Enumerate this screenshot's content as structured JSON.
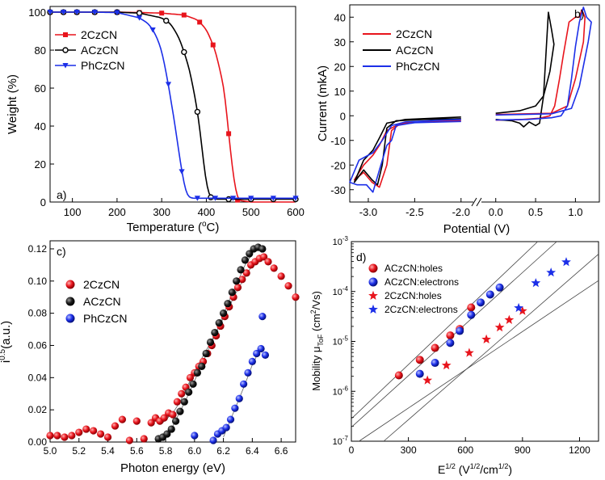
{
  "colors": {
    "red": "#e8141c",
    "black": "#000000",
    "blue": "#1c2fe8",
    "fit": "#444444"
  },
  "chart_data": [
    {
      "id": "a",
      "type": "line",
      "panel_label": "a)",
      "xlabel": "Temperature (",
      "xlabel_sup": "o",
      "xlabel_end": "C)",
      "ylabel": "Weight (%)",
      "xlim": [
        50,
        600
      ],
      "ylim": [
        0,
        103
      ],
      "xticks": [
        100,
        200,
        300,
        400,
        500,
        600
      ],
      "yticks": [
        0,
        20,
        40,
        60,
        80,
        100
      ],
      "legend_position": "top-left",
      "series": [
        {
          "name": "2CzCN",
          "color": "#e8141c",
          "marker": "square",
          "x": [
            50,
            80,
            110,
            150,
            200,
            250,
            300,
            350,
            380,
            400,
            420,
            440,
            450,
            460,
            470,
            500,
            550,
            600
          ],
          "y": [
            100,
            100,
            100,
            100,
            100,
            99.8,
            99.5,
            98.5,
            96,
            91,
            80,
            60,
            36,
            14,
            1,
            0,
            0,
            0
          ],
          "marker_x": [
            50,
            80,
            110,
            150,
            200,
            250,
            300,
            350,
            385,
            415,
            450,
            470
          ]
        },
        {
          "name": "ACzCN",
          "color": "#000000",
          "marker": "circle",
          "x": [
            50,
            80,
            110,
            150,
            200,
            250,
            300,
            320,
            340,
            360,
            375,
            385,
            395,
            405,
            420,
            450,
            500,
            550,
            600
          ],
          "y": [
            100,
            100,
            100,
            100,
            100,
            99.5,
            97,
            94,
            86,
            72,
            55,
            40,
            18,
            3,
            1.5,
            1.5,
            1.5,
            1.5,
            1.5
          ],
          "marker_x": [
            50,
            80,
            110,
            150,
            200,
            250,
            310,
            350,
            380,
            410,
            450,
            500,
            550,
            600
          ]
        },
        {
          "name": "PhCzCN",
          "color": "#1c2fe8",
          "marker": "triangle-down",
          "x": [
            50,
            80,
            110,
            150,
            200,
            250,
            270,
            285,
            300,
            315,
            330,
            345,
            355,
            365,
            400,
            450,
            500,
            550,
            600
          ],
          "y": [
            100,
            100,
            100,
            100,
            99.8,
            97,
            94,
            89,
            80,
            62,
            40,
            16,
            4,
            2,
            2,
            2,
            2,
            2,
            2
          ],
          "marker_x": [
            50,
            80,
            110,
            150,
            200,
            250,
            280,
            315,
            345,
            380,
            420,
            460,
            500,
            550,
            600
          ]
        }
      ]
    },
    {
      "id": "b",
      "type": "line",
      "panel_label": "b)",
      "xlabel": "Potential (V)",
      "ylabel": "Current (mkA)",
      "xlim": [
        -3.2,
        1.3
      ],
      "ylim": [
        -35,
        45
      ],
      "xticks": [
        -3.0,
        -2.5,
        -2.0,
        0.0,
        0.5,
        1.0
      ],
      "xticklabels": [
        "-3.0",
        "-2.5",
        "-2.0",
        "0.0",
        "0.5",
        "1.0"
      ],
      "yticks": [
        -30,
        -20,
        -10,
        0,
        10,
        20,
        30,
        40
      ],
      "axis_break": "between -2.0 and 0.0",
      "legend_position": "top-left",
      "series": [
        {
          "name": "2CzCN",
          "color": "#e8141c"
        },
        {
          "name": "ACzCN",
          "color": "#000000"
        },
        {
          "name": "PhCzCN",
          "color": "#1c2fe8"
        }
      ]
    },
    {
      "id": "c",
      "type": "scatter",
      "panel_label": "c)",
      "xlabel": "Photon energy (eV)",
      "ylabel": "i",
      "ylabel_sup": "0.5",
      "ylabel_end": "(a.u.)",
      "xlim": [
        5.0,
        6.7
      ],
      "ylim": [
        0,
        0.125
      ],
      "xticks": [
        5.0,
        5.2,
        5.4,
        5.6,
        5.8,
        6.0,
        6.2,
        6.4,
        6.6
      ],
      "xticklabels": [
        "5.0",
        "5.2",
        "5.4",
        "5.6",
        "5.8",
        "6.0",
        "6.2",
        "6.4",
        "6.6"
      ],
      "yticks": [
        0,
        0.02,
        0.04,
        0.06,
        0.08,
        0.1,
        0.12
      ],
      "yticklabels": [
        "0.00",
        "0.02",
        "0.04",
        "0.06",
        "0.08",
        "0.10",
        "0.12"
      ],
      "legend_position": "left",
      "series": [
        {
          "name": "2CzCN",
          "color": "#e8141c",
          "x": [
            5.0,
            5.05,
            5.1,
            5.15,
            5.2,
            5.25,
            5.3,
            5.35,
            5.4,
            5.45,
            5.5,
            5.55,
            5.6,
            5.65,
            5.7,
            5.73,
            5.76,
            5.79,
            5.82,
            5.85,
            5.88,
            5.91,
            5.94,
            5.97,
            6.0,
            6.03,
            6.06,
            6.09,
            6.12,
            6.15,
            6.18,
            6.21,
            6.24,
            6.27,
            6.3,
            6.33,
            6.36,
            6.39,
            6.42,
            6.45,
            6.48,
            6.51,
            6.55,
            6.6,
            6.65,
            6.7
          ],
          "y": [
            0.004,
            0.004,
            0.003,
            0.004,
            0.006,
            0.008,
            0.007,
            0.005,
            0.003,
            0.01,
            0.014,
            0.001,
            0.013,
            0.002,
            0.012,
            0.015,
            0.013,
            0.015,
            0.018,
            0.017,
            0.025,
            0.03,
            0.034,
            0.04,
            0.043,
            0.047,
            0.05,
            0.055,
            0.06,
            0.066,
            0.072,
            0.078,
            0.084,
            0.09,
            0.096,
            0.101,
            0.105,
            0.11,
            0.112,
            0.114,
            0.115,
            0.112,
            0.108,
            0.103,
            0.097,
            0.09
          ],
          "fit_x": [
            5.78,
            5.85,
            5.9,
            6.0,
            6.1,
            6.2,
            6.3,
            6.4,
            6.45,
            6.5
          ],
          "fit_y": [
            0.012,
            0.018,
            0.025,
            0.044,
            0.06,
            0.077,
            0.095,
            0.11,
            0.115,
            0.113
          ]
        },
        {
          "name": "ACzCN",
          "color": "#000000",
          "x": [
            5.75,
            5.78,
            5.81,
            5.84,
            5.87,
            5.9,
            5.93,
            5.96,
            5.99,
            6.02,
            6.05,
            6.08,
            6.11,
            6.14,
            6.17,
            6.2,
            6.23,
            6.26,
            6.29,
            6.32,
            6.35,
            6.38,
            6.41,
            6.44,
            6.47
          ],
          "y": [
            0.002,
            0.003,
            0.005,
            0.008,
            0.013,
            0.019,
            0.025,
            0.031,
            0.036,
            0.043,
            0.047,
            0.055,
            0.062,
            0.068,
            0.074,
            0.08,
            0.086,
            0.093,
            0.1,
            0.107,
            0.113,
            0.117,
            0.12,
            0.121,
            0.12
          ],
          "fit_x": [
            5.75,
            5.85,
            5.95,
            6.05,
            6.15,
            6.25,
            6.35,
            6.42,
            6.47
          ],
          "fit_y": [
            0.0,
            0.01,
            0.028,
            0.048,
            0.068,
            0.09,
            0.11,
            0.12,
            0.121
          ]
        },
        {
          "name": "PhCzCN",
          "color": "#1c2fe8",
          "x": [
            6.0,
            6.13,
            6.16,
            6.19,
            6.22,
            6.25,
            6.28,
            6.31,
            6.34,
            6.37,
            6.4,
            6.43,
            6.46,
            6.49
          ],
          "y": [
            0.004,
            0.001,
            0.005,
            0.007,
            0.009,
            0.014,
            0.021,
            0.027,
            0.036,
            0.043,
            0.05,
            0.055,
            0.058,
            0.054
          ],
          "extra_x": [
            6.47
          ],
          "extra_y": [
            0.078
          ],
          "fit_x": [
            6.2,
            6.25,
            6.3,
            6.35,
            6.4,
            6.45
          ],
          "fit_y": [
            0.003,
            0.014,
            0.025,
            0.036,
            0.048,
            0.057
          ]
        }
      ]
    },
    {
      "id": "d",
      "type": "scatter",
      "panel_label": "d)",
      "xlabel": "E",
      "xlabel_sup": "1/2",
      "xlabel_mid": " (V",
      "xlabel_sup2": "1/2",
      "xlabel_mid2": "/cm",
      "xlabel_sup3": "1/2",
      "xlabel_end": ")",
      "ylabel": "Mobility  μ",
      "ylabel_sub": "ToF",
      "ylabel_end": " (cm",
      "ylabel_sup": "2",
      "ylabel_end2": "/Vs)",
      "xlim": [
        0,
        1300
      ],
      "ylim_log10": [
        -7,
        -3
      ],
      "xticks": [
        0,
        300,
        600,
        900,
        1200
      ],
      "yticks_log10": [
        -7,
        -6,
        -5,
        -4,
        -3
      ],
      "legend_position": "top-left",
      "series": [
        {
          "name": "ACzCN:holes",
          "color": "#e8141c",
          "marker": "ball",
          "x": [
            250,
            360,
            440,
            520,
            570,
            630
          ],
          "log10_y": [
            -5.68,
            -5.37,
            -5.13,
            -4.88,
            -4.75,
            -4.32
          ]
        },
        {
          "name": "ACzCN:electrons",
          "color": "#1c2fe8",
          "marker": "ball",
          "x": [
            360,
            440,
            520,
            570,
            630,
            680,
            730,
            780
          ],
          "log10_y": [
            -5.65,
            -5.43,
            -5.03,
            -4.79,
            -4.47,
            -4.22,
            -4.06,
            -3.92
          ]
        },
        {
          "name": "2CzCN:holes",
          "color": "#e8141c",
          "marker": "star",
          "x": [
            400,
            500,
            620,
            710,
            780,
            830,
            900
          ],
          "log10_y": [
            -5.78,
            -5.48,
            -5.23,
            -4.96,
            -4.72,
            -4.57,
            -4.39
          ]
        },
        {
          "name": "2CzCN:electrons",
          "color": "#1c2fe8",
          "marker": "star",
          "x": [
            880,
            970,
            1050,
            1130
          ],
          "log10_y": [
            -4.33,
            -3.83,
            -3.62,
            -3.41
          ]
        }
      ],
      "fit_lines": [
        {
          "x": [
            0,
            980
          ],
          "log10_y": [
            -6.55,
            -3.0
          ]
        },
        {
          "x": [
            0,
            1080
          ],
          "log10_y": [
            -6.72,
            -3.0
          ]
        },
        {
          "x": [
            40,
            1300
          ],
          "log10_y": [
            -7.0,
            -3.78
          ]
        },
        {
          "x": [
            170,
            1300
          ],
          "log10_y": [
            -7.0,
            -3.25
          ]
        }
      ]
    }
  ]
}
